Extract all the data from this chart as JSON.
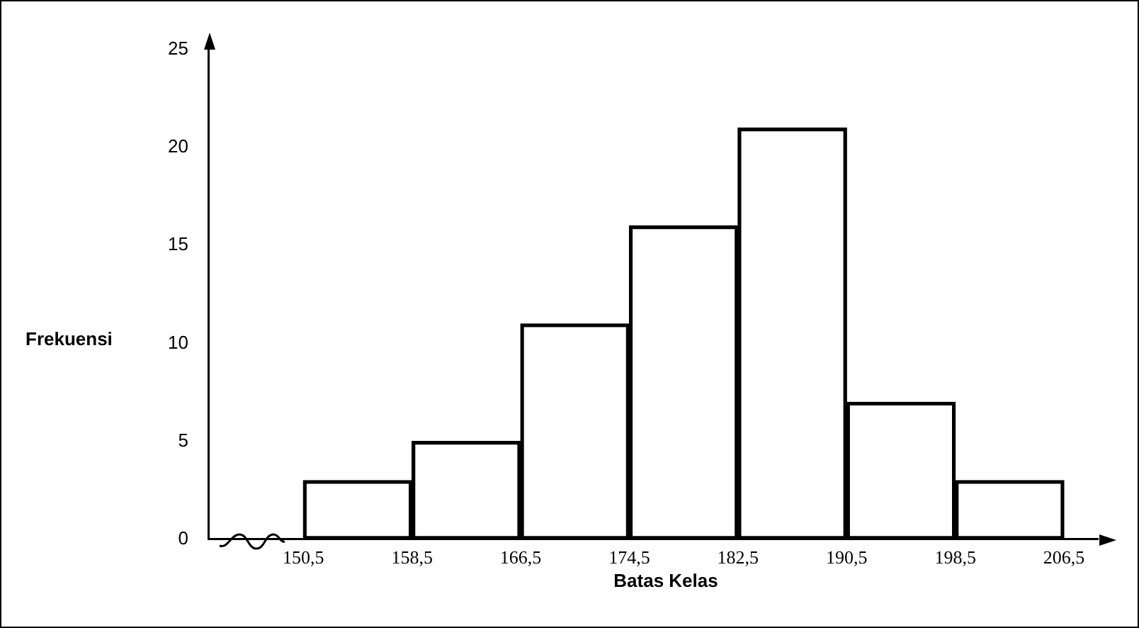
{
  "chart_data": {
    "type": "histogram",
    "xlabel": "Batas Kelas",
    "ylabel": "Frekuensi",
    "bins": [
      150.5,
      158.5,
      166.5,
      174.5,
      182.5,
      190.5,
      198.5,
      206.5
    ],
    "values": [
      3,
      5,
      11,
      16,
      21,
      7,
      3
    ],
    "color": "#000000",
    "xlim": [
      143.5,
      209
    ],
    "xticks": [
      {
        "value": 150.5,
        "label": "150,5"
      },
      {
        "value": 158.5,
        "label": "158,5"
      },
      {
        "value": 166.5,
        "label": "166,5"
      },
      {
        "value": 174.5,
        "label": "174,5"
      },
      {
        "value": 182.5,
        "label": "182,5"
      },
      {
        "value": 190.5,
        "label": "190,5"
      },
      {
        "value": 198.5,
        "label": "198,5"
      },
      {
        "value": 206.5,
        "label": "206,5"
      }
    ],
    "ylim": [
      0,
      25
    ],
    "yticks": [
      0,
      5,
      10,
      15,
      20,
      25
    ],
    "grid": false,
    "legend": false
  }
}
